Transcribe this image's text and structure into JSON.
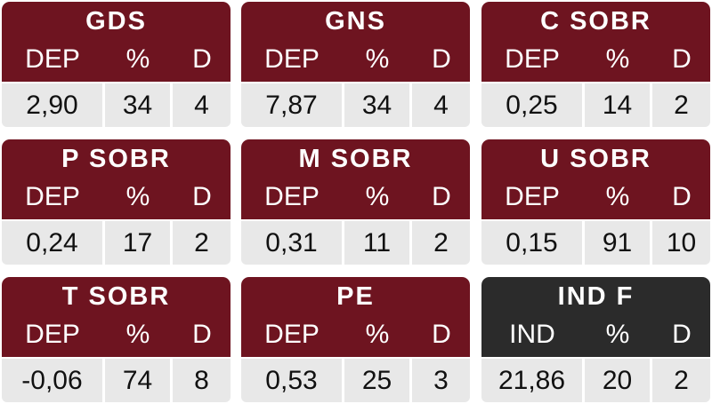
{
  "panels": [
    {
      "title": "GDS",
      "labels": [
        "DEP",
        "%",
        "D"
      ],
      "values": [
        "2,90",
        "34",
        "4"
      ]
    },
    {
      "title": "GNS",
      "labels": [
        "DEP",
        "%",
        "D"
      ],
      "values": [
        "7,87",
        "34",
        "4"
      ]
    },
    {
      "title": "C SOBR",
      "labels": [
        "DEP",
        "%",
        "D"
      ],
      "values": [
        "0,25",
        "14",
        "2"
      ]
    },
    {
      "title": "P SOBR",
      "labels": [
        "DEP",
        "%",
        "D"
      ],
      "values": [
        "0,24",
        "17",
        "2"
      ]
    },
    {
      "title": "M SOBR",
      "labels": [
        "DEP",
        "%",
        "D"
      ],
      "values": [
        "0,31",
        "11",
        "2"
      ]
    },
    {
      "title": "U SOBR",
      "labels": [
        "DEP",
        "%",
        "D"
      ],
      "values": [
        "0,15",
        "91",
        "10"
      ]
    },
    {
      "title": "T SOBR",
      "labels": [
        "DEP",
        "%",
        "D"
      ],
      "values": [
        "-0,06",
        "74",
        "8"
      ]
    },
    {
      "title": "PE",
      "labels": [
        "DEP",
        "%",
        "D"
      ],
      "values": [
        "0,53",
        "25",
        "3"
      ]
    },
    {
      "title": "IND F",
      "labels": [
        "IND",
        "%",
        "D"
      ],
      "values": [
        "21,86",
        "20",
        "2"
      ],
      "dark": true
    }
  ],
  "colors": {
    "header": "#6e1420",
    "header_dark": "#2b2b2b",
    "cell": "#e8e8e8"
  }
}
